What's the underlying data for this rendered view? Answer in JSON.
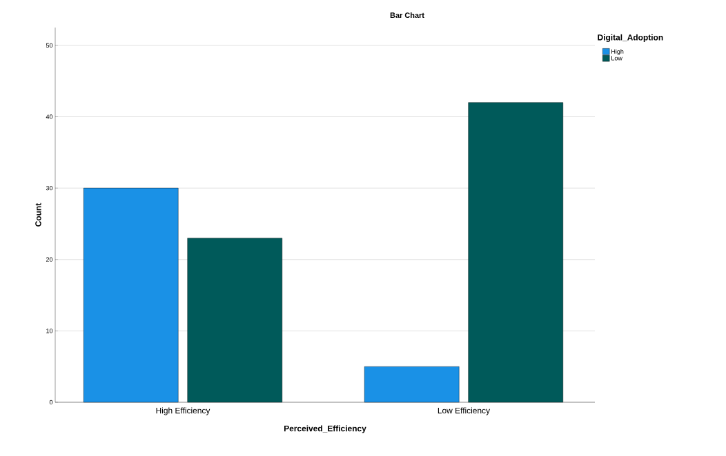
{
  "chart_data": {
    "type": "bar",
    "title": "Bar Chart",
    "xlabel": "Perceived_Efficiency",
    "ylabel": "Count",
    "legend_title": "Digital_Adoption",
    "categories": [
      "High Efficiency",
      "Low Efficiency"
    ],
    "series": [
      {
        "name": "High",
        "color": "#1a91e6",
        "values": [
          30,
          5
        ]
      },
      {
        "name": "Low",
        "color": "#005a5a",
        "values": [
          23,
          42
        ]
      }
    ],
    "ylim": [
      0,
      52.5
    ],
    "yticks": [
      0,
      10,
      20,
      30,
      40,
      50
    ],
    "grid": "y",
    "legend": "top right"
  }
}
